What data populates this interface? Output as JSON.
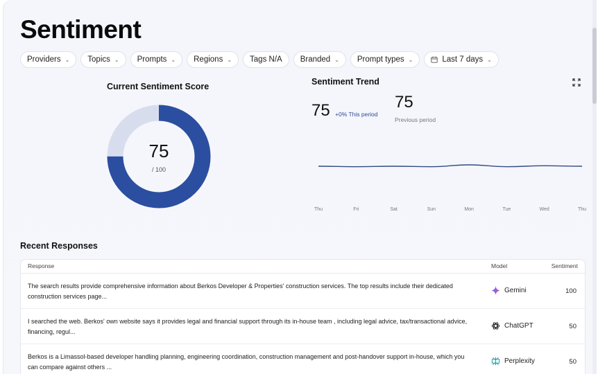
{
  "page": {
    "title": "Sentiment"
  },
  "filters": [
    {
      "label": "Providers",
      "icon": "chevron-down-icon"
    },
    {
      "label": "Topics",
      "icon": "chevron-down-icon"
    },
    {
      "label": "Prompts",
      "icon": "chevron-down-icon"
    },
    {
      "label": "Regions",
      "icon": "chevron-down-icon"
    },
    {
      "label": "Tags N/A",
      "icon": ""
    },
    {
      "label": "Branded",
      "icon": "chevron-down-icon"
    },
    {
      "label": "Prompt types",
      "icon": "chevron-down-icon"
    },
    {
      "label": "Last 7 days",
      "icon": "calendar-icon"
    }
  ],
  "score": {
    "title": "Current Sentiment Score",
    "value": "75",
    "max_label": "/ 100",
    "fraction": 0.75,
    "fill_color": "#2b4ea0",
    "track_color": "#d8ddee"
  },
  "trend": {
    "title": "Sentiment Trend",
    "current": "75",
    "change": "+0% This period",
    "previous": "75",
    "previous_label": "Previous period",
    "line_color": "#2f4a86"
  },
  "chart_data": {
    "type": "line",
    "title": "Sentiment Trend",
    "categories": [
      "Thu",
      "Fri",
      "Sat",
      "Sun",
      "Mon",
      "Tue",
      "Wed",
      "Thu"
    ],
    "series": [
      {
        "values": [
          75,
          74.8,
          75,
          74.8,
          75.6,
          74.8,
          75.2,
          75
        ]
      }
    ],
    "ylim": [
      60,
      90
    ],
    "grid": false
  },
  "recent": {
    "title": "Recent Responses",
    "columns": {
      "response": "Response",
      "model": "Model",
      "sentiment": "Sentiment"
    },
    "rows": [
      {
        "response": "The search results provide comprehensive information about Berkos Developer & Properties' construction services. The top results include their dedicated construction services page...",
        "model": "Gemini",
        "model_icon": "gemini-icon",
        "sentiment": "100"
      },
      {
        "response": "I searched the web. Berkos' own website says it provides legal and financial support through its in-house team , including legal advice, tax/transactional advice, financing, regul...",
        "model": "ChatGPT",
        "model_icon": "chatgpt-icon",
        "sentiment": "50"
      },
      {
        "response": "Berkos is a Limassol-based developer handling planning, engineering coordination, construction management and post-handover support in-house, which you can compare against others ...",
        "model": "Perplexity",
        "model_icon": "perplexity-icon",
        "sentiment": "50"
      }
    ]
  }
}
